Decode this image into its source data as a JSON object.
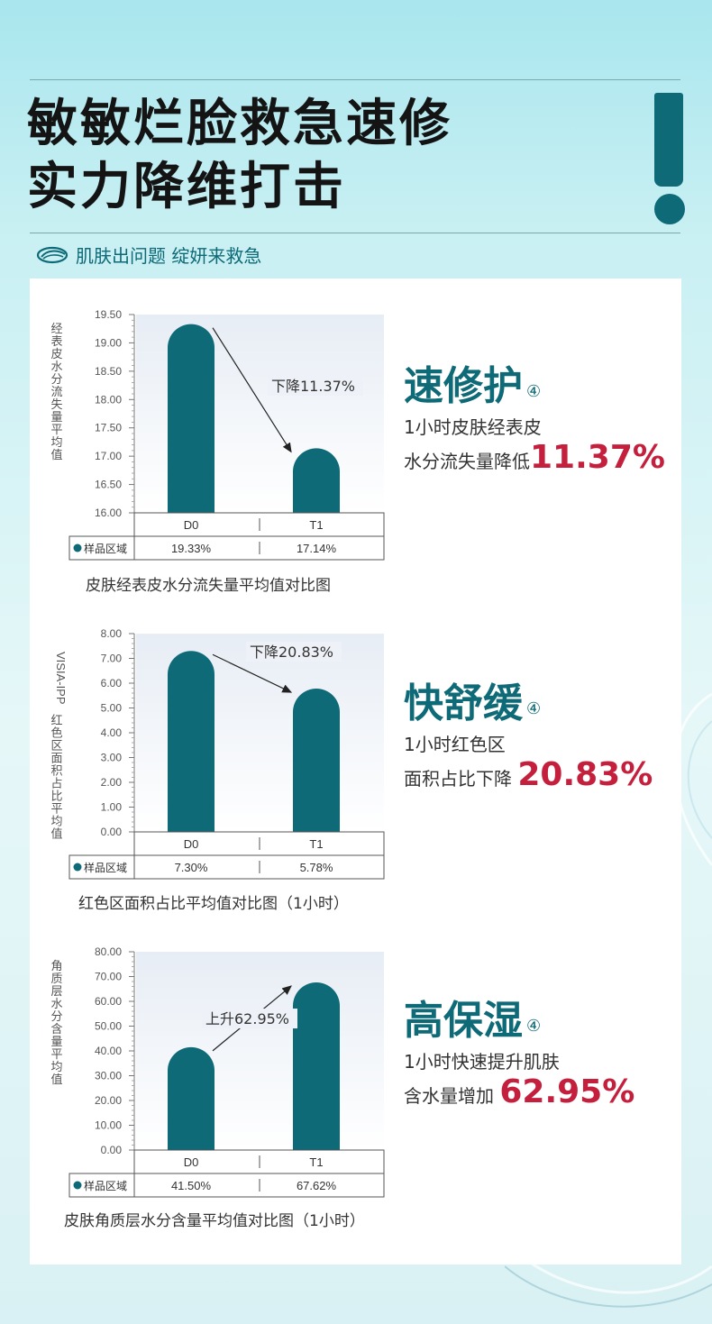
{
  "headline": {
    "line1": "敏敏烂脸救急速修",
    "line2": "实力降维打击"
  },
  "subline": {
    "text": "肌肤出问题 绽妍来救急",
    "icon": "leaf-logo-icon"
  },
  "colors": {
    "teal": "#0e6a77",
    "red": "#c41f3c"
  },
  "row_label": "样品区域",
  "charts": [
    {
      "ylabel": "经表皮水分流失量平均值",
      "caption": "皮肤经表皮水分流失量平均值对比图",
      "annotation": "下降11.37%",
      "feature": {
        "title": "速修护",
        "mark": "④",
        "line1": "1小时皮肤经表皮",
        "line2": "水分流失量降低",
        "highlight": "11.37%"
      }
    },
    {
      "ylabel": "VISIA-IPP红色区面积占比平均值",
      "caption": "红色区面积占比平均值对比图（1小时）",
      "annotation": "下降20.83%",
      "feature": {
        "title": "快舒缓",
        "mark": "④",
        "line1": "1小时红色区",
        "line2": "面积占比下降",
        "highlight": "20.83%"
      }
    },
    {
      "ylabel": "角质层水分含量平均值",
      "caption": "皮肤角质层水分含量平均值对比图（1小时）",
      "annotation": "上升62.95%",
      "feature": {
        "title": "高保湿",
        "mark": "④",
        "line1": "1小时快速提升肌肤",
        "line2": "含水量增加",
        "highlight": "62.95%"
      }
    }
  ],
  "chart_data": [
    {
      "type": "bar",
      "categories": [
        "D0",
        "T1"
      ],
      "values": [
        19.33,
        17.14
      ],
      "value_labels": [
        "19.33%",
        "17.14%"
      ],
      "ylabel": "经表皮水分流失量平均值",
      "ylim": [
        16.0,
        19.5
      ],
      "yticks": [
        "16.00",
        "16.50",
        "17.00",
        "17.50",
        "18.00",
        "18.50",
        "19.00",
        "19.50"
      ],
      "title": "皮肤经表皮水分流失量平均值对比图",
      "annotation": "下降11.37%",
      "grid": false
    },
    {
      "type": "bar",
      "categories": [
        "D0",
        "T1"
      ],
      "values": [
        7.3,
        5.78
      ],
      "value_labels": [
        "7.30%",
        "5.78%"
      ],
      "ylabel": "VISIA-IPP红色区面积占比平均值",
      "ylim": [
        0,
        8.0
      ],
      "yticks": [
        "0.00",
        "1.00",
        "2.00",
        "3.00",
        "4.00",
        "5.00",
        "6.00",
        "7.00",
        "8.00"
      ],
      "title": "红色区面积占比平均值对比图（1小时）",
      "annotation": "下降20.83%",
      "grid": false
    },
    {
      "type": "bar",
      "categories": [
        "D0",
        "T1"
      ],
      "values": [
        41.5,
        67.62
      ],
      "value_labels": [
        "41.50%",
        "67.62%"
      ],
      "ylabel": "角质层水分含量平均值",
      "ylim": [
        0,
        80.0
      ],
      "yticks": [
        "0.00",
        "10.00",
        "20.00",
        "30.00",
        "40.00",
        "50.00",
        "60.00",
        "70.00",
        "80.00"
      ],
      "title": "皮肤角质层水分含量平均值对比图（1小时）",
      "annotation": "上升62.95%",
      "grid": false
    }
  ]
}
